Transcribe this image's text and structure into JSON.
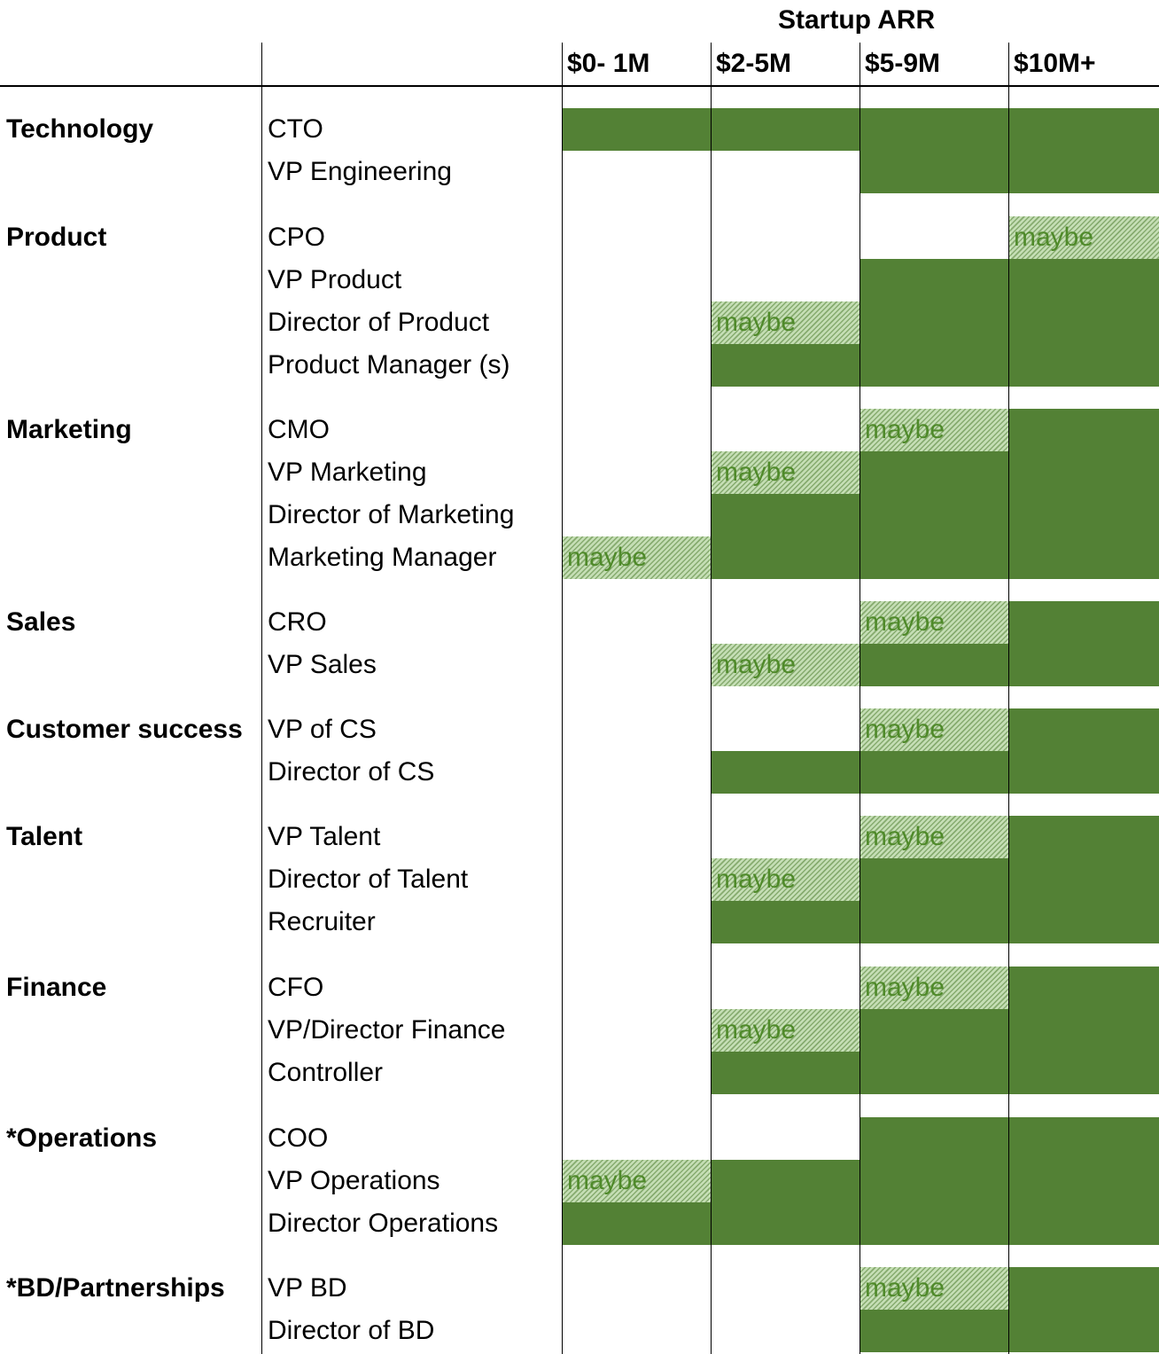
{
  "chart_data": {
    "type": "table",
    "title": "Startup ARR",
    "columns": [
      "$0- 1M",
      "$2-5M",
      "$5-9M",
      "$10M+"
    ],
    "maybe_label": "maybe",
    "legend_colors": {
      "yes": "#538135",
      "maybe": "#c5deb5"
    },
    "groups": [
      {
        "department": "Technology",
        "roles": [
          {
            "role": "CTO",
            "cells": [
              "yes",
              "yes",
              "yes",
              "yes"
            ]
          },
          {
            "role": "VP Engineering",
            "cells": [
              "",
              "",
              "yes",
              "yes"
            ]
          }
        ]
      },
      {
        "department": "Product",
        "roles": [
          {
            "role": "CPO",
            "cells": [
              "",
              "",
              "",
              "maybe"
            ]
          },
          {
            "role": "VP Product",
            "cells": [
              "",
              "",
              "yes",
              "yes"
            ]
          },
          {
            "role": "Director of Product",
            "cells": [
              "",
              "maybe",
              "yes",
              "yes"
            ]
          },
          {
            "role": "Product Manager (s)",
            "cells": [
              "",
              "yes",
              "yes",
              "yes"
            ]
          }
        ]
      },
      {
        "department": "Marketing",
        "roles": [
          {
            "role": "CMO",
            "cells": [
              "",
              "",
              "maybe",
              "yes"
            ]
          },
          {
            "role": "VP Marketing",
            "cells": [
              "",
              "maybe",
              "yes",
              "yes"
            ]
          },
          {
            "role": "Director of Marketing",
            "cells": [
              "",
              "yes",
              "yes",
              "yes"
            ]
          },
          {
            "role": "Marketing Manager",
            "cells": [
              "maybe",
              "yes",
              "yes",
              "yes"
            ]
          }
        ]
      },
      {
        "department": "Sales",
        "roles": [
          {
            "role": "CRO",
            "cells": [
              "",
              "",
              "maybe",
              "yes"
            ]
          },
          {
            "role": "VP Sales",
            "cells": [
              "",
              "maybe",
              "yes",
              "yes"
            ]
          }
        ]
      },
      {
        "department": "Customer success",
        "roles": [
          {
            "role": "VP of CS",
            "cells": [
              "",
              "",
              "maybe",
              "yes"
            ]
          },
          {
            "role": "Director of CS",
            "cells": [
              "",
              "yes",
              "yes",
              "yes"
            ]
          }
        ]
      },
      {
        "department": "Talent",
        "roles": [
          {
            "role": "VP Talent",
            "cells": [
              "",
              "",
              "maybe",
              "yes"
            ]
          },
          {
            "role": "Director of Talent",
            "cells": [
              "",
              "maybe",
              "yes",
              "yes"
            ]
          },
          {
            "role": "Recruiter",
            "cells": [
              "",
              "yes",
              "yes",
              "yes"
            ]
          }
        ]
      },
      {
        "department": "Finance",
        "roles": [
          {
            "role": "CFO",
            "cells": [
              "",
              "",
              "maybe",
              "yes"
            ]
          },
          {
            "role": "VP/Director Finance",
            "cells": [
              "",
              "maybe",
              "yes",
              "yes"
            ]
          },
          {
            "role": "Controller",
            "cells": [
              "",
              "yes",
              "yes",
              "yes"
            ]
          }
        ]
      },
      {
        "department": "*Operations",
        "roles": [
          {
            "role": "COO",
            "cells": [
              "",
              "",
              "yes",
              "yes"
            ]
          },
          {
            "role": "VP Operations",
            "cells": [
              "maybe",
              "yes",
              "yes",
              "yes"
            ]
          },
          {
            "role": "Director Operations",
            "cells": [
              "yes",
              "yes",
              "yes",
              "yes"
            ]
          }
        ]
      },
      {
        "department": "*BD/Partnerships",
        "roles": [
          {
            "role": "VP BD",
            "cells": [
              "",
              "",
              "maybe",
              "yes"
            ]
          },
          {
            "role": "Director of BD",
            "cells": [
              "",
              "",
              "yes",
              "yes"
            ]
          }
        ]
      }
    ]
  }
}
